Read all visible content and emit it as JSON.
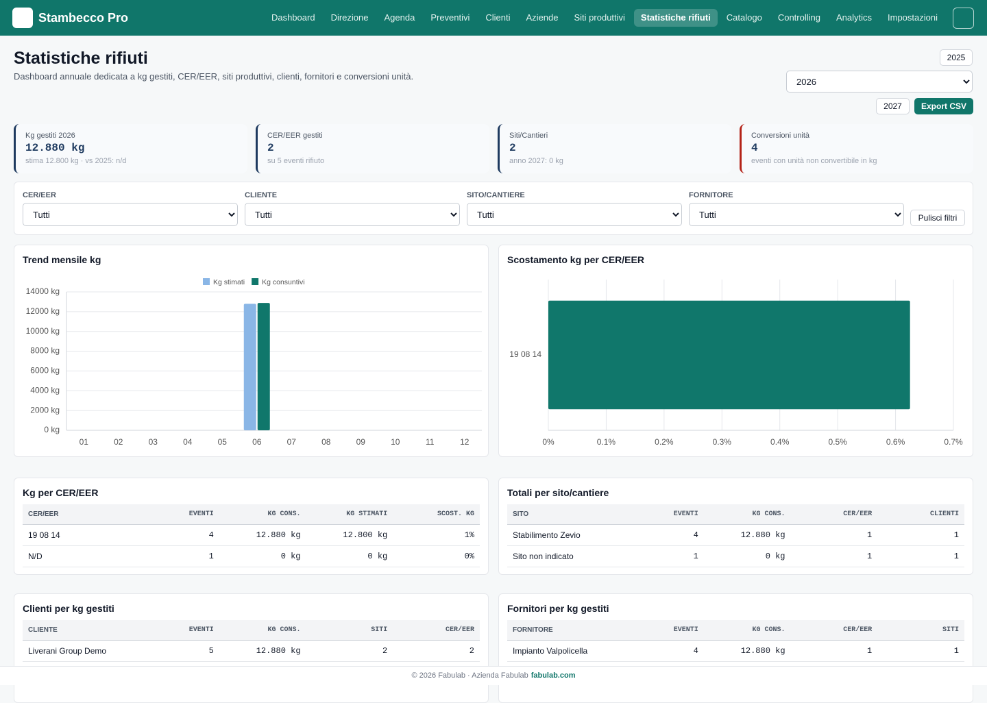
{
  "nav": {
    "brand": "Stambecco Pro",
    "items": [
      "Dashboard",
      "Direzione",
      "Agenda",
      "Preventivi",
      "Clienti",
      "Aziende",
      "Siti produttivi",
      "Statistiche rifiuti",
      "Catalogo",
      "Controlling",
      "Analytics",
      "Impostazioni"
    ]
  },
  "header": {
    "title": "Statistiche rifiuti",
    "subtitle": "Dashboard annuale dedicata a kg gestiti, CER/EER, siti produttivi, clienti, fornitori e conversioni unità.",
    "year_prev": "2025",
    "year_selected": "2026",
    "year_next": "2027",
    "export": "Export CSV"
  },
  "kpis": [
    {
      "label": "Kg gestiti 2026",
      "value": "12.880 kg",
      "note": "stima 12.800 kg · vs 2025: n/d",
      "accent": "#1e3a5f"
    },
    {
      "label": "CER/EER gestiti",
      "value": "2",
      "note": "su 5 eventi rifiuto",
      "accent": "#1e3a5f"
    },
    {
      "label": "Siti/Cantieri",
      "value": "2",
      "note": "anno 2027: 0 kg",
      "accent": "#1e3a5f"
    },
    {
      "label": "Conversioni unità",
      "value": "4",
      "note": "eventi con unità non convertibile in kg",
      "accent": "#b42318"
    }
  ],
  "filters": {
    "fields": [
      {
        "label": "CER/EER",
        "value": "Tutti"
      },
      {
        "label": "CLIENTE",
        "value": "Tutti"
      },
      {
        "label": "SITO/CANTIERE",
        "value": "Tutti"
      },
      {
        "label": "FORNITORE",
        "value": "Tutti"
      }
    ],
    "clear": "Pulisci filtri"
  },
  "chart_data": [
    {
      "type": "bar",
      "title": "Trend mensile kg",
      "categories": [
        "01",
        "02",
        "03",
        "04",
        "05",
        "06",
        "07",
        "08",
        "09",
        "10",
        "11",
        "12"
      ],
      "series": [
        {
          "name": "Kg stimati",
          "color": "#8ab6e6",
          "values": [
            0,
            0,
            0,
            0,
            0,
            12800,
            0,
            0,
            0,
            0,
            0,
            0
          ]
        },
        {
          "name": "Kg consuntivi",
          "color": "#10776b",
          "values": [
            0,
            0,
            0,
            0,
            0,
            12880,
            0,
            0,
            0,
            0,
            0,
            0
          ]
        }
      ],
      "ylim": [
        0,
        14000
      ],
      "yticks": [
        {
          "value": 0,
          "label": "0 kg"
        },
        {
          "value": 2000,
          "label": "2000 kg"
        },
        {
          "value": 4000,
          "label": "4000 kg"
        },
        {
          "value": 6000,
          "label": "6000 kg"
        },
        {
          "value": 8000,
          "label": "8000 kg"
        },
        {
          "value": 10000,
          "label": "10000 kg"
        },
        {
          "value": 12000,
          "label": "12000 kg"
        },
        {
          "value": 14000,
          "label": "14000 kg"
        }
      ],
      "grid": true,
      "legend": "top"
    },
    {
      "type": "hbar",
      "title": "Scostamento kg per CER/EER",
      "categories": [
        "19 08 14"
      ],
      "values": [
        0.625
      ],
      "color": "#10776b",
      "xlim": [
        0,
        0.7
      ],
      "xticks": [
        {
          "value": 0,
          "label": "0%"
        },
        {
          "value": 0.1,
          "label": "0.1%"
        },
        {
          "value": 0.2,
          "label": "0.2%"
        },
        {
          "value": 0.3,
          "label": "0.3%"
        },
        {
          "value": 0.4,
          "label": "0.4%"
        },
        {
          "value": 0.5,
          "label": "0.5%"
        },
        {
          "value": 0.6,
          "label": "0.6%"
        },
        {
          "value": 0.7,
          "label": "0.7%"
        }
      ],
      "grid": true
    }
  ],
  "tables": [
    {
      "title": "Kg per CER/EER",
      "columns": [
        "CER/EER",
        "EVENTI",
        "KG CONS.",
        "KG STIMATI",
        "SCOST. KG"
      ],
      "rows": [
        [
          "19 08 14",
          "4",
          "12.880 kg",
          "12.800 kg",
          "1%"
        ],
        [
          "N/D",
          "1",
          "0 kg",
          "0 kg",
          "0%"
        ]
      ]
    },
    {
      "title": "Totali per sito/cantiere",
      "columns": [
        "SITO",
        "EVENTI",
        "KG CONS.",
        "CER/EER",
        "CLIENTI"
      ],
      "rows": [
        [
          "Stabilimento Zevio",
          "4",
          "12.880 kg",
          "1",
          "1"
        ],
        [
          "Sito non indicato",
          "1",
          "0 kg",
          "1",
          "1"
        ]
      ]
    },
    {
      "title": "Clienti per kg gestiti",
      "columns": [
        "CLIENTE",
        "EVENTI",
        "KG CONS.",
        "SITI",
        "CER/EER"
      ],
      "rows": [
        [
          "Liverani Group Demo",
          "5",
          "12.880 kg",
          "2",
          "2"
        ]
      ]
    },
    {
      "title": "Fornitori per kg gestiti",
      "columns": [
        "FORNITORE",
        "EVENTI",
        "KG CONS.",
        "CER/EER",
        "SITI"
      ],
      "rows": [
        [
          "Impianto Valpolicella",
          "4",
          "12.880 kg",
          "1",
          "1"
        ]
      ]
    }
  ],
  "footer": {
    "text": "© 2026 Fabulab · Azienda Fabulab",
    "link": "fabulab.com"
  }
}
